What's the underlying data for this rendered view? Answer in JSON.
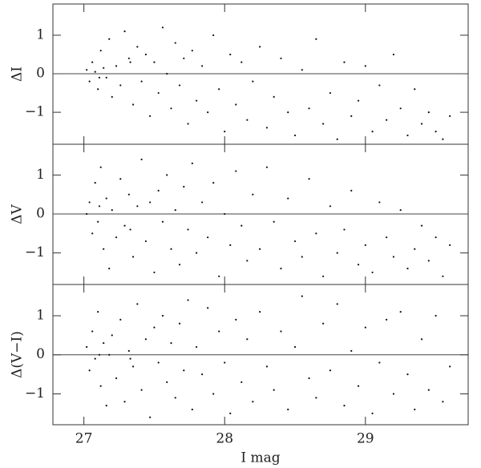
{
  "chart_data": [
    {
      "type": "scatter",
      "ylabel": "ΔI",
      "color": "#111111",
      "hline": 0,
      "xlim": [
        26.78,
        29.73
      ],
      "xticks": [
        27,
        28,
        29
      ],
      "ylim": [
        -1.83,
        1.81
      ],
      "yticks": [
        {
          "value": -1,
          "label": "−1"
        },
        0,
        1
      ],
      "x": [
        27.02,
        27.04,
        27.06,
        27.08,
        27.1,
        27.12,
        27.14,
        27.16,
        27.18,
        27.2,
        27.23,
        27.26,
        27.29,
        27.32,
        27.35,
        27.38,
        27.41,
        27.44,
        27.47,
        27.5,
        27.53,
        27.56,
        27.59,
        27.62,
        27.65,
        27.68,
        27.71,
        27.74,
        27.77,
        27.8,
        27.84,
        27.88,
        27.92,
        27.96,
        28.0,
        28.04,
        28.08,
        28.12,
        28.16,
        28.2,
        28.25,
        28.3,
        28.35,
        28.4,
        28.45,
        28.5,
        28.55,
        28.6,
        28.65,
        28.7,
        28.75,
        28.8,
        28.85,
        28.9,
        28.95,
        29.0,
        29.05,
        29.1,
        29.15,
        29.2,
        29.25,
        29.3,
        29.35,
        29.4,
        29.45,
        29.5,
        29.55,
        29.6,
        27.11,
        27.33
      ],
      "values": [
        0.1,
        -0.2,
        0.3,
        0.05,
        -0.4,
        0.6,
        0.15,
        -0.1,
        0.9,
        -0.6,
        0.2,
        -0.3,
        1.1,
        0.4,
        -0.8,
        0.7,
        -0.2,
        0.5,
        -1.1,
        0.3,
        -0.5,
        1.2,
        0.0,
        -0.9,
        0.8,
        -0.3,
        0.4,
        -1.3,
        0.6,
        -0.7,
        0.2,
        -1.0,
        1.0,
        -0.4,
        -1.5,
        0.5,
        -0.8,
        0.3,
        -1.2,
        -0.2,
        0.7,
        -1.4,
        -0.6,
        0.4,
        -1.0,
        -1.6,
        0.1,
        -0.9,
        0.9,
        -1.3,
        -0.5,
        -1.7,
        0.3,
        -1.1,
        -0.7,
        0.2,
        -1.5,
        -0.3,
        -1.2,
        0.5,
        -0.9,
        -1.6,
        -0.4,
        -1.3,
        -1.0,
        -1.5,
        -1.7,
        -1.1,
        -0.1,
        0.3
      ]
    },
    {
      "type": "scatter",
      "ylabel": "ΔV",
      "color": "#111111",
      "hline": 0,
      "xlim": [
        26.78,
        29.73
      ],
      "xticks": [
        27,
        28,
        29
      ],
      "ylim": [
        -1.81,
        1.79
      ],
      "yticks": [
        {
          "value": -1,
          "label": "−1"
        },
        0,
        1
      ],
      "x": [
        27.02,
        27.04,
        27.06,
        27.08,
        27.1,
        27.12,
        27.14,
        27.16,
        27.18,
        27.2,
        27.23,
        27.26,
        27.29,
        27.32,
        27.35,
        27.38,
        27.41,
        27.44,
        27.47,
        27.5,
        27.53,
        27.56,
        27.59,
        27.62,
        27.65,
        27.68,
        27.71,
        27.74,
        27.77,
        27.8,
        27.84,
        27.88,
        27.92,
        27.96,
        28.0,
        28.04,
        28.08,
        28.12,
        28.16,
        28.2,
        28.25,
        28.3,
        28.35,
        28.4,
        28.45,
        28.5,
        28.55,
        28.6,
        28.65,
        28.7,
        28.75,
        28.8,
        28.85,
        28.9,
        28.95,
        29.0,
        29.05,
        29.1,
        29.15,
        29.2,
        29.25,
        29.3,
        29.35,
        29.4,
        29.45,
        29.5,
        29.55,
        29.6,
        27.11,
        27.33
      ],
      "values": [
        0.0,
        0.3,
        -0.5,
        0.8,
        -0.2,
        1.2,
        -0.9,
        0.4,
        -1.4,
        0.1,
        -0.6,
        0.9,
        -0.3,
        0.5,
        -1.1,
        0.2,
        1.4,
        -0.7,
        0.3,
        -1.5,
        0.6,
        -0.2,
        1.0,
        -0.9,
        0.1,
        -1.3,
        0.7,
        -0.4,
        1.3,
        -1.0,
        0.3,
        -0.6,
        0.8,
        -1.6,
        0.0,
        -0.8,
        1.1,
        -0.3,
        -1.2,
        0.5,
        -0.9,
        1.2,
        -0.2,
        -1.4,
        0.4,
        -0.7,
        -1.1,
        0.9,
        -0.5,
        -1.6,
        0.2,
        -1.0,
        -0.4,
        0.6,
        -1.3,
        -0.8,
        -1.5,
        0.3,
        -0.6,
        -1.1,
        0.1,
        -1.4,
        -0.9,
        -0.3,
        -1.2,
        -0.6,
        -1.6,
        -0.8,
        0.2,
        -0.4
      ]
    },
    {
      "type": "scatter",
      "ylabel": "Δ(V−I)",
      "xlabel": "I mag",
      "color": "#111111",
      "hline": 0,
      "xlim": [
        26.78,
        29.73
      ],
      "xticks": [
        27,
        28,
        29
      ],
      "ylim": [
        -1.79,
        1.8
      ],
      "yticks": [
        {
          "value": -1,
          "label": "−1"
        },
        0,
        1
      ],
      "x": [
        27.02,
        27.04,
        27.06,
        27.08,
        27.1,
        27.12,
        27.14,
        27.16,
        27.18,
        27.2,
        27.23,
        27.26,
        27.29,
        27.32,
        27.35,
        27.38,
        27.41,
        27.44,
        27.47,
        27.5,
        27.53,
        27.56,
        27.59,
        27.62,
        27.65,
        27.68,
        27.71,
        27.74,
        27.77,
        27.8,
        27.84,
        27.88,
        27.92,
        27.96,
        28.0,
        28.04,
        28.08,
        28.12,
        28.16,
        28.2,
        28.25,
        28.3,
        28.35,
        28.4,
        28.45,
        28.5,
        28.55,
        28.6,
        28.65,
        28.7,
        28.75,
        28.8,
        28.85,
        28.9,
        28.95,
        29.0,
        29.05,
        29.1,
        29.15,
        29.2,
        29.25,
        29.3,
        29.35,
        29.4,
        29.45,
        29.5,
        29.55,
        29.6,
        27.11,
        27.33
      ],
      "values": [
        0.2,
        -0.4,
        0.6,
        -0.1,
        1.1,
        -0.8,
        0.3,
        -1.3,
        0.0,
        0.5,
        -0.6,
        0.9,
        -1.2,
        0.1,
        -0.3,
        1.3,
        -0.9,
        0.4,
        -1.6,
        0.7,
        -0.2,
        1.0,
        -0.7,
        0.3,
        -1.1,
        0.8,
        -0.4,
        1.4,
        -1.4,
        0.2,
        -0.5,
        1.2,
        -1.0,
        0.6,
        -0.2,
        -1.5,
        0.9,
        -0.7,
        0.4,
        -1.2,
        1.1,
        -0.3,
        -0.9,
        0.6,
        -1.4,
        0.2,
        1.5,
        -0.6,
        -1.1,
        0.8,
        -0.4,
        1.3,
        -1.3,
        0.1,
        -0.8,
        0.7,
        -1.5,
        -0.2,
        0.9,
        -1.0,
        1.1,
        -0.5,
        -1.4,
        0.4,
        -0.9,
        1.0,
        -1.2,
        -0.3,
        0.0,
        -0.1
      ]
    }
  ]
}
